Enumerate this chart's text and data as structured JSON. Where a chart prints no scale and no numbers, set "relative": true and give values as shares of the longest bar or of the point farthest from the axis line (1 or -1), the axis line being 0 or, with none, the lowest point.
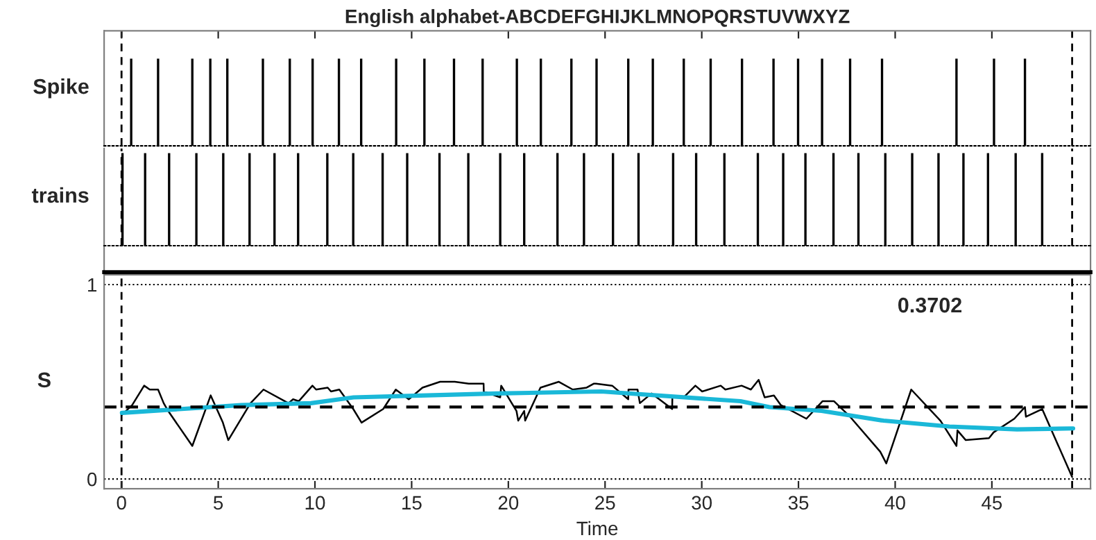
{
  "chart_data": [
    {
      "type": "bar",
      "title": "English alphabet-ABCDEFGHIJKLMNOPQRSTUVWXYZ",
      "ylabel": "Spike",
      "relative": true,
      "tick_labels": false,
      "xlim": [
        -0.9,
        50.1
      ],
      "xticks": [
        0,
        5,
        10,
        15,
        20,
        25,
        30,
        35,
        40,
        45
      ],
      "series": [
        {
          "color": "#000000",
          "x": [
            0.5,
            1.89,
            3.66,
            4.59,
            5.47,
            7.31,
            8.7,
            9.88,
            11.24,
            12.39,
            14.2,
            15.66,
            17.19,
            18.67,
            20.44,
            21.68,
            23.26,
            24.56,
            26.2,
            27.47,
            29.07,
            30.46,
            32.08,
            33.71,
            34.98,
            36.22,
            37.67,
            39.32,
            43.17,
            45.11,
            46.71
          ],
          "values": [
            1,
            1,
            1,
            1,
            1,
            1,
            1,
            1,
            1,
            1,
            1,
            1,
            1,
            1,
            1,
            1,
            1,
            1,
            1,
            1,
            1,
            1,
            1,
            1,
            1,
            1,
            1,
            1,
            1,
            1,
            1
          ]
        }
      ],
      "ref_lines": [
        {
          "axis": "x",
          "value": 0,
          "color": "#000000",
          "line_style": "dashed"
        },
        {
          "axis": "x",
          "value": 49.15,
          "color": "#000000",
          "line_style": "dashed"
        }
      ]
    },
    {
      "type": "bar",
      "ylabel": "trains",
      "relative": true,
      "tick_labels": false,
      "xlim": [
        -0.9,
        50.1
      ],
      "xticks": [
        0,
        5,
        10,
        15,
        20,
        25,
        30,
        35,
        40,
        45
      ],
      "series": [
        {
          "color": "#000000",
          "x": [
            0.05,
            1.22,
            2.46,
            3.87,
            5.26,
            6.62,
            7.91,
            9.13,
            10.64,
            11.98,
            13.5,
            14.77,
            16.44,
            17.93,
            19.58,
            20.82,
            22.54,
            23.91,
            25.41,
            26.73,
            28.52,
            29.71,
            31.17,
            32.9,
            34.21,
            35.36,
            36.81,
            38.1,
            39.49,
            40.88,
            42.24,
            43.53,
            44.8,
            46.23,
            47.6
          ],
          "values": [
            1,
            1,
            1,
            1,
            1,
            1,
            1,
            1,
            1,
            1,
            1,
            1,
            1,
            1,
            1,
            1,
            1,
            1,
            1,
            1,
            1,
            1,
            1,
            1,
            1,
            1,
            1,
            1,
            1,
            1,
            1,
            1,
            1,
            1,
            1
          ]
        }
      ],
      "ref_lines": [
        {
          "axis": "x",
          "value": 0,
          "color": "#000000",
          "line_style": "dashed"
        },
        {
          "axis": "x",
          "value": 49.15,
          "color": "#000000",
          "line_style": "dashed"
        }
      ]
    },
    {
      "type": "line",
      "xlabel": "Time",
      "ylabel": "S",
      "xlim": [
        -0.9,
        50.1
      ],
      "xticks": [
        0,
        5,
        10,
        15,
        20,
        25,
        30,
        35,
        40,
        45
      ],
      "ylim": [
        -0.05,
        1.05
      ],
      "yticks": [
        0,
        1
      ],
      "grid": "y",
      "marker": "none",
      "series": [
        {
          "color": "#000000",
          "x": [
            0.02,
            0.55,
            1.17,
            1.46,
            1.89,
            2.18,
            2.41,
            3.66,
            4.61,
            5.24,
            5.52,
            6.67,
            7.34,
            8.63,
            8.87,
            9.16,
            9.87,
            10.06,
            10.66,
            10.83,
            11.26,
            11.98,
            12.41,
            13.53,
            14.18,
            14.85,
            15.56,
            16.47,
            17.23,
            17.95,
            18.72,
            18.73,
            19.58,
            19.63,
            20.42,
            20.51,
            20.82,
            20.87,
            21.66,
            22.61,
            23.33,
            24.05,
            24.41,
            24.53,
            25.37,
            26.2,
            26.21,
            26.68,
            26.8,
            27.4,
            28.47,
            28.48,
            29.07,
            29.67,
            30.02,
            30.98,
            31.22,
            32.06,
            32.54,
            32.94,
            33.25,
            33.73,
            34.09,
            35.41,
            36.24,
            36.84,
            37.67,
            39.23,
            39.54,
            40.83,
            42.34,
            43.17,
            43.22,
            43.65,
            44.85,
            45.09,
            46.16,
            46.71,
            46.76,
            47.6,
            49.15
          ],
          "values": [
            0.33,
            0.38,
            0.48,
            0.46,
            0.46,
            0.39,
            0.35,
            0.17,
            0.43,
            0.29,
            0.2,
            0.39,
            0.46,
            0.39,
            0.41,
            0.4,
            0.48,
            0.46,
            0.47,
            0.45,
            0.46,
            0.36,
            0.29,
            0.36,
            0.46,
            0.41,
            0.47,
            0.5,
            0.5,
            0.49,
            0.49,
            0.45,
            0.42,
            0.48,
            0.35,
            0.3,
            0.35,
            0.3,
            0.47,
            0.5,
            0.46,
            0.47,
            0.49,
            0.49,
            0.48,
            0.41,
            0.46,
            0.46,
            0.39,
            0.44,
            0.36,
            0.42,
            0.42,
            0.48,
            0.45,
            0.48,
            0.46,
            0.48,
            0.46,
            0.51,
            0.42,
            0.43,
            0.38,
            0.31,
            0.4,
            0.4,
            0.32,
            0.14,
            0.08,
            0.46,
            0.3,
            0.17,
            0.25,
            0.2,
            0.21,
            0.24,
            0.31,
            0.37,
            0.32,
            0.36,
            0.01
          ]
        },
        {
          "color": "#1ab8d8",
          "x": [
            0.02,
            6.2,
            9.8,
            12,
            15.8,
            19.4,
            24.8,
            32,
            33.5,
            36.2,
            39.4,
            42.8,
            46.3,
            49.2
          ],
          "values": [
            0.34,
            0.38,
            0.39,
            0.42,
            0.43,
            0.44,
            0.45,
            0.4,
            0.37,
            0.35,
            0.3,
            0.27,
            0.255,
            0.26
          ]
        }
      ],
      "ref_lines": [
        {
          "axis": "y",
          "value": 0.3702,
          "label": "0.3702",
          "color": "#000000",
          "line_style": "dashed"
        },
        {
          "axis": "x",
          "value": 0,
          "color": "#000000",
          "line_style": "dashed"
        },
        {
          "axis": "x",
          "value": 49.15,
          "color": "#000000",
          "line_style": "dashed"
        }
      ]
    }
  ]
}
